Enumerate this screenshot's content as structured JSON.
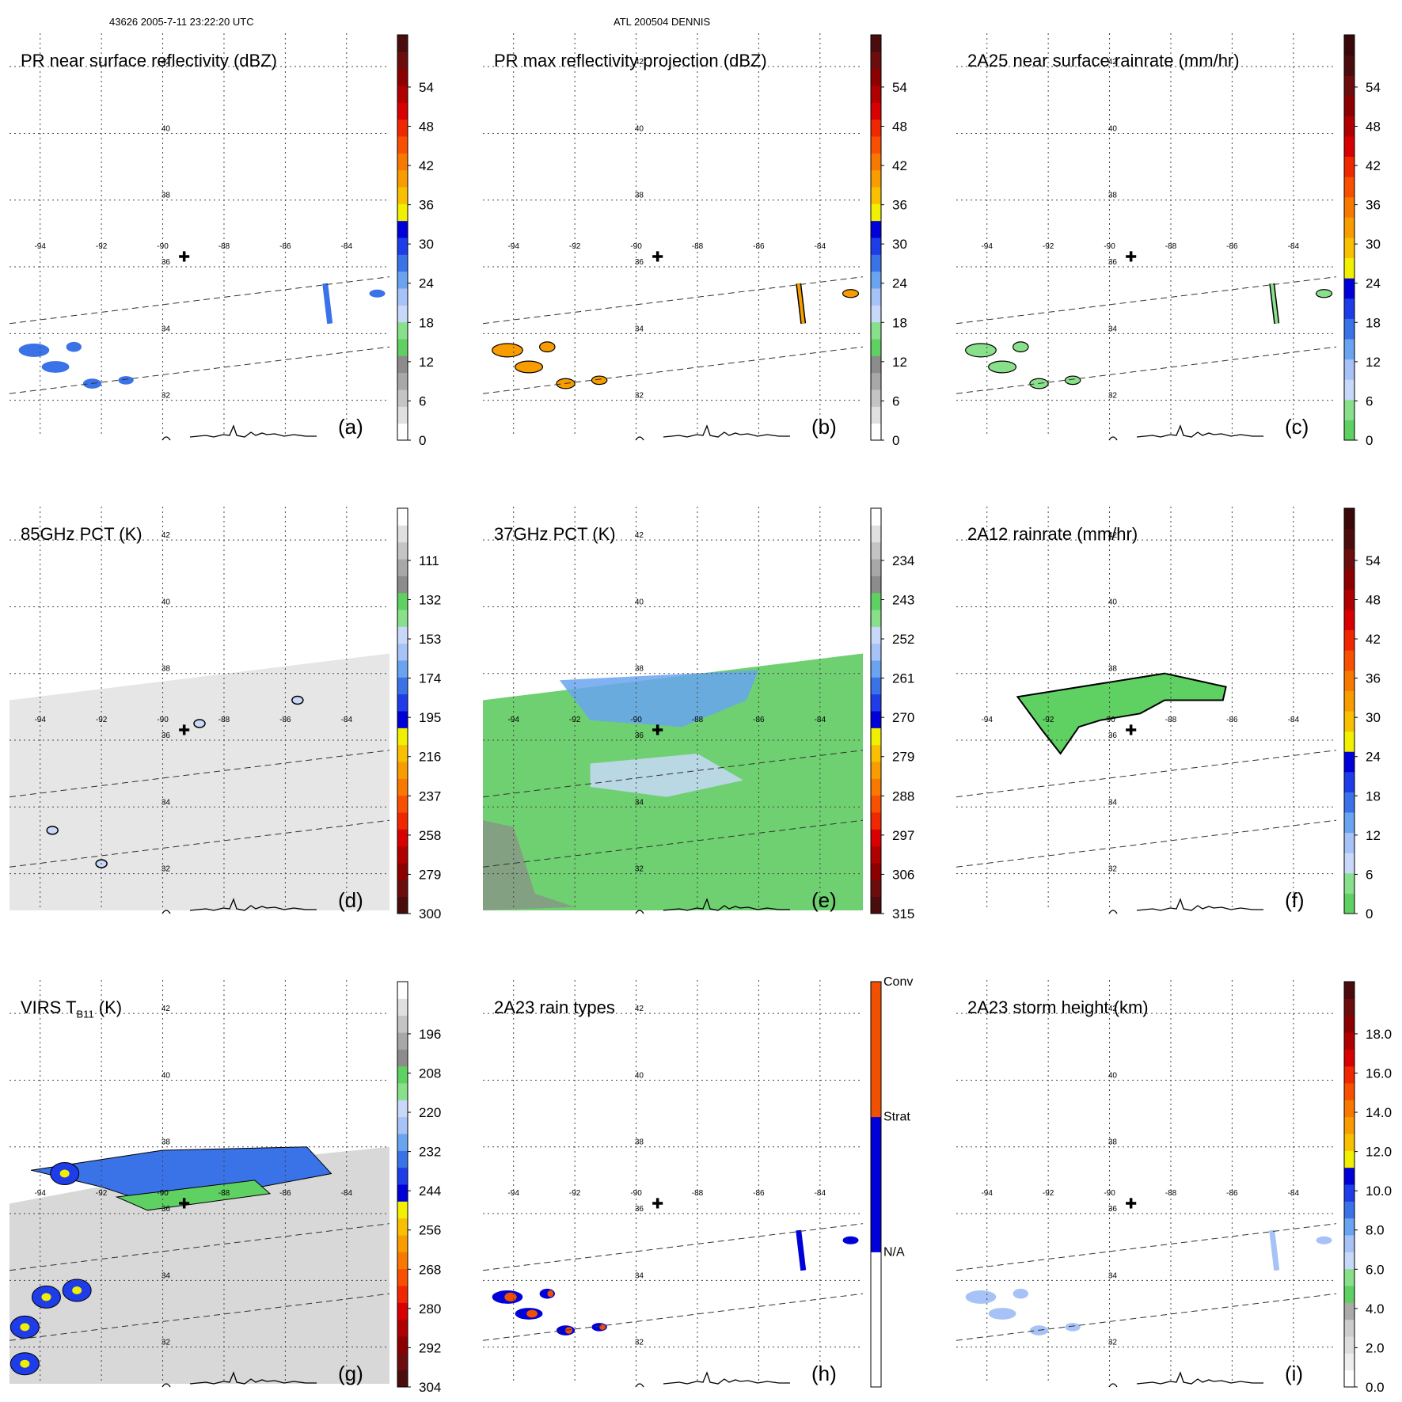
{
  "header": {
    "left": "43626 2005-7-11 23:22:20 UTC",
    "center": "ATL 200504 DENNIS"
  },
  "map": {
    "lon_ticks": [
      -94,
      -92,
      -90,
      -88,
      -86,
      -84
    ],
    "lat_ticks": [
      42,
      40,
      38,
      36,
      34,
      32
    ],
    "lon_range": [
      -95.0,
      -82.6
    ],
    "lat_range": [
      43.0,
      30.9
    ],
    "center_mark": {
      "lon": -89.3,
      "lat": 36.3,
      "symbol": "✚"
    },
    "swath_lines": [
      {
        "from": [
          -95.0,
          34.3
        ],
        "to": [
          -82.6,
          35.7
        ]
      },
      {
        "from": [
          -95.0,
          32.2
        ],
        "to": [
          -82.6,
          33.6
        ]
      }
    ]
  },
  "colors": {
    "refl": [
      "#ffffff",
      "#e0e0e0",
      "#c4c4c4",
      "#a8a8a8",
      "#8c8c8c",
      "#5fd062",
      "#88e08a",
      "#c8d8f8",
      "#a6c2f6",
      "#6aa4f0",
      "#3a72e8",
      "#1e3ce8",
      "#0000d8",
      "#f0f000",
      "#f8c000",
      "#f89c00",
      "#f87800",
      "#f85000",
      "#f02800",
      "#d80000",
      "#b00000",
      "#8c0000",
      "#6c0c0c",
      "#4a0c0c"
    ],
    "rain": [
      "#5fd062",
      "#88e08a",
      "#c8d8f8",
      "#a6c2f6",
      "#6aa4f0",
      "#3a72e8",
      "#1e3ce8",
      "#0000d8",
      "#f0f000",
      "#f8c000",
      "#f89c00",
      "#f87800",
      "#f85000",
      "#f02800",
      "#d80000",
      "#b00000",
      "#8c0000",
      "#6c0c0c",
      "#4a0c0c",
      "#3a0808"
    ],
    "pct": [
      "#4a0c0c",
      "#6c0c0c",
      "#8c0000",
      "#b00000",
      "#d80000",
      "#f02800",
      "#f85000",
      "#f87800",
      "#f89c00",
      "#f8c000",
      "#f0f000",
      "#0000d8",
      "#1e3ce8",
      "#3a72e8",
      "#6aa4f0",
      "#a6c2f6",
      "#c8d8f8",
      "#88e08a",
      "#5fd062",
      "#8c8c8c",
      "#a8a8a8",
      "#c4c4c4",
      "#e0e0e0",
      "#ffffff"
    ],
    "height": [
      "#ffffff",
      "#eeeeee",
      "#dddddd",
      "#cccccc",
      "#aaaaaa",
      "#5fd062",
      "#88e08a",
      "#c8d8f8",
      "#a6c2f6",
      "#6aa4f0",
      "#3a72e8",
      "#1e3ce8",
      "#0000d8",
      "#f0f000",
      "#f8c000",
      "#f89c00",
      "#f87800",
      "#f85000",
      "#f02800",
      "#d80000",
      "#b00000",
      "#8c0000",
      "#6c0c0c",
      "#4a0c0c"
    ],
    "types": [
      "#ffffff",
      "#0000d8",
      "#f05000"
    ],
    "swath_fill_d": "#e6e6e6",
    "swath_fill_e": "#6ed070",
    "swath_fill_g": "#d8d8d8"
  },
  "panels": [
    {
      "id": "a",
      "title": "PR near surface reflectivity (dBZ)",
      "letter": "(a)",
      "ticks": [
        "0",
        "6",
        "12",
        "18",
        "24",
        "30",
        "36",
        "42",
        "48",
        "54"
      ],
      "scale": "refl",
      "swath": "pr"
    },
    {
      "id": "b",
      "title": "PR max reflectivity projection (dBZ)",
      "letter": "(b)",
      "ticks": [
        "0",
        "6",
        "12",
        "18",
        "24",
        "30",
        "36",
        "42",
        "48",
        "54"
      ],
      "scale": "refl",
      "swath": "pr"
    },
    {
      "id": "c",
      "title": "2A25 near surface rainrate (mm/hr)",
      "letter": "(c)",
      "ticks": [
        "0",
        "6",
        "12",
        "18",
        "24",
        "30",
        "36",
        "42",
        "48",
        "54"
      ],
      "scale": "rain",
      "swath": "pr"
    },
    {
      "id": "d",
      "title": "85GHz PCT (K)",
      "letter": "(d)",
      "ticks": [
        "300",
        "279",
        "258",
        "237",
        "216",
        "195",
        "174",
        "153",
        "132",
        "111"
      ],
      "scale": "pct",
      "swath": "tmi"
    },
    {
      "id": "e",
      "title": "37GHz PCT (K)",
      "letter": "(e)",
      "ticks": [
        "315",
        "306",
        "297",
        "288",
        "279",
        "270",
        "261",
        "252",
        "243",
        "234"
      ],
      "scale": "pct",
      "swath": "tmi"
    },
    {
      "id": "f",
      "title": "2A12 rainrate (mm/hr)",
      "letter": "(f)",
      "ticks": [
        "0",
        "6",
        "12",
        "18",
        "24",
        "30",
        "36",
        "42",
        "48",
        "54"
      ],
      "scale": "rain",
      "swath": "tmi"
    },
    {
      "id": "g",
      "title_main": "VIRS T",
      "title_sub": "B11",
      "title_end": " (K)",
      "letter": "(g)",
      "ticks": [
        "304",
        "292",
        "280",
        "268",
        "256",
        "244",
        "232",
        "220",
        "208",
        "196"
      ],
      "scale": "pct",
      "swath": "virs"
    },
    {
      "id": "h",
      "title": "2A23 rain types",
      "letter": "(h)",
      "ticks": [
        "N/A",
        "Strat",
        "Conv"
      ],
      "scale": "types",
      "swath": "pr"
    },
    {
      "id": "i",
      "title": "2A23 storm height (km)",
      "letter": "(i)",
      "ticks": [
        "0.0",
        "2.0",
        "4.0",
        "6.0",
        "8.0",
        "10.0",
        "12.0",
        "14.0",
        "16.0",
        "18.0"
      ],
      "scale": "height",
      "swath": "pr"
    }
  ],
  "rain_cells": {
    "pr_scatter": [
      {
        "lon": -94.2,
        "lat": 33.5,
        "w": 1.0,
        "h": 0.4
      },
      {
        "lon": -93.5,
        "lat": 33.0,
        "w": 0.9,
        "h": 0.35
      },
      {
        "lon": -92.3,
        "lat": 32.5,
        "w": 0.6,
        "h": 0.3
      },
      {
        "lon": -91.2,
        "lat": 32.6,
        "w": 0.5,
        "h": 0.25
      },
      {
        "lon": -92.9,
        "lat": 33.6,
        "w": 0.5,
        "h": 0.3
      }
    ],
    "pr_line": {
      "lon": -84.7,
      "lat_from": 34.3,
      "lat_to": 35.5,
      "width": 0.25
    },
    "pr_east": {
      "lon": -83.0,
      "lat": 35.2,
      "w": 0.6,
      "h": 0.3
    }
  },
  "tmi_cells": {
    "f_area": [
      [
        -93.0,
        37.3
      ],
      [
        -88.2,
        38.0
      ],
      [
        -86.2,
        37.6
      ],
      [
        -86.3,
        37.2
      ],
      [
        -88.2,
        37.2
      ],
      [
        -89.0,
        36.8
      ],
      [
        -90.3,
        36.6
      ],
      [
        -91.0,
        36.4
      ],
      [
        -91.6,
        35.6
      ],
      [
        -92.2,
        36.3
      ],
      [
        -93.0,
        37.3
      ]
    ],
    "e_cold": [
      [
        -92.5,
        37.8
      ],
      [
        -86.0,
        38.1
      ],
      [
        -86.4,
        37.2
      ],
      [
        -88.5,
        36.4
      ],
      [
        -91.5,
        36.6
      ],
      [
        -92.5,
        37.8
      ]
    ]
  },
  "virs_cells": {
    "cold_band": [
      [
        -94.3,
        37.3
      ],
      [
        -90.0,
        37.9
      ],
      [
        -85.3,
        38.0
      ],
      [
        -84.5,
        37.2
      ],
      [
        -86.8,
        36.8
      ],
      [
        -88.5,
        36.5
      ],
      [
        -90.0,
        36.2
      ],
      [
        -92.0,
        36.8
      ],
      [
        -94.3,
        37.3
      ]
    ],
    "cores": [
      {
        "lon": -93.8,
        "lat": 33.5
      },
      {
        "lon": -94.5,
        "lat": 32.6
      },
      {
        "lon": -94.5,
        "lat": 31.5
      },
      {
        "lon": -92.8,
        "lat": 33.7
      },
      {
        "lon": -93.2,
        "lat": 37.2
      }
    ]
  }
}
